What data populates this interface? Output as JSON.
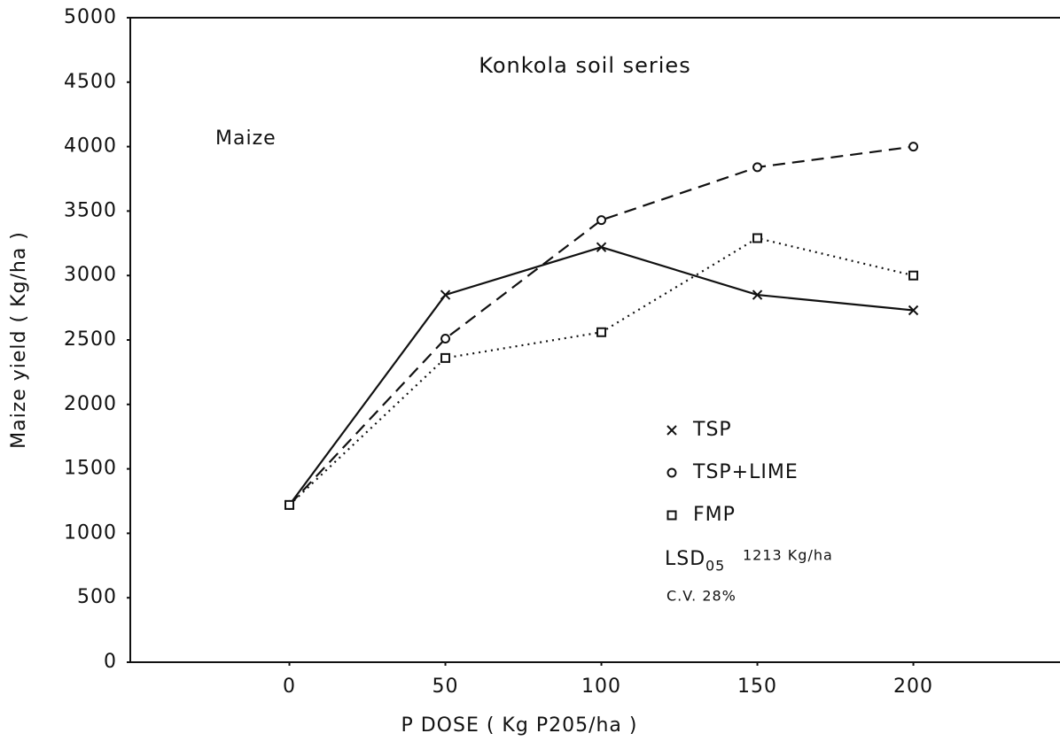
{
  "chart_data": {
    "type": "line",
    "title": "Konkola soil series",
    "xlabel": "P DOSE ( Kg P205/ha )",
    "ylabel": "Maize yield ( Kg/ha )",
    "annotations": {
      "crop": "Maize",
      "lsd": {
        "text": "LSD",
        "subscript": "05",
        "value": "1213 Kg/ha"
      },
      "cv": "C.V. 28%"
    },
    "x": [
      0,
      50,
      100,
      150,
      200
    ],
    "series": [
      {
        "name": "TSP",
        "color": "#111111",
        "marker": "x",
        "dash": "solid",
        "values": [
          1220,
          2850,
          3220,
          2850,
          2730
        ]
      },
      {
        "name": "TSP+LIME",
        "color": "#111111",
        "marker": "o",
        "dash": "dashed",
        "values": [
          1220,
          2510,
          3430,
          3840,
          4000
        ]
      },
      {
        "name": "FMP",
        "color": "#111111",
        "marker": "s",
        "dash": "dotted",
        "values": [
          1220,
          2360,
          2560,
          3290,
          3000
        ]
      }
    ],
    "xlim": [
      -51,
      247
    ],
    "ylim": [
      0,
      5000
    ],
    "xticks": [
      0,
      50,
      100,
      150,
      200
    ],
    "yticks": [
      0,
      500,
      1000,
      1500,
      2000,
      2500,
      3000,
      3500,
      4000,
      4500,
      5000
    ]
  }
}
